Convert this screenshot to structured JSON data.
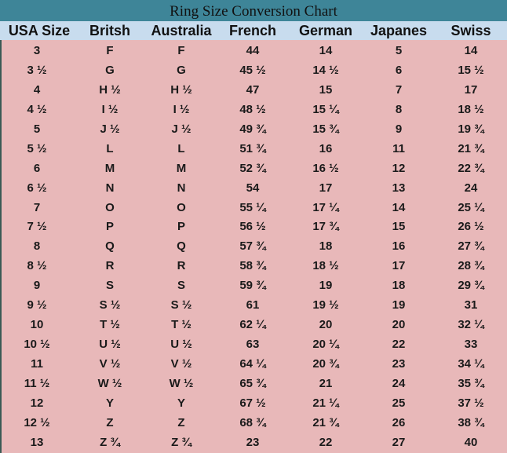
{
  "title": "Ring Size Conversion Chart",
  "colors": {
    "title_bar": "#3e8598",
    "header_bg": "#c8dcee",
    "body_bg": "#e8b8b9"
  },
  "columns": [
    "USA Size",
    "Britsh",
    "Australia",
    "French",
    "German",
    "Japanes",
    "Swiss"
  ],
  "rows": [
    [
      "3",
      "F",
      "F",
      "44",
      "14",
      "5",
      "14"
    ],
    [
      "3 ½",
      "G",
      "G",
      "45 ½",
      "14 ½",
      "6",
      "15 ½"
    ],
    [
      "4",
      "H ½",
      "H ½",
      "47",
      "15",
      "7",
      "17"
    ],
    [
      "4 ½",
      "I ½",
      "I ½",
      "48 ½",
      "15 ¼",
      "8",
      "18 ½"
    ],
    [
      "5",
      "J ½",
      "J ½",
      "49 ¾",
      "15 ¾",
      "9",
      "19 ¾"
    ],
    [
      "5 ½",
      "L",
      "L",
      "51 ¾",
      "16",
      "11",
      "21 ¾"
    ],
    [
      "6",
      "M",
      "M",
      "52 ¾",
      "16 ½",
      "12",
      "22 ¾"
    ],
    [
      "6 ½",
      "N",
      "N",
      "54",
      "17",
      "13",
      "24"
    ],
    [
      "7",
      "O",
      "O",
      "55 ¼",
      "17 ¼",
      "14",
      "25 ¼"
    ],
    [
      "7 ½",
      "P",
      "P",
      "56 ½",
      "17 ¾",
      "15",
      "26 ½"
    ],
    [
      "8",
      "Q",
      "Q",
      "57 ¾",
      "18",
      "16",
      "27  ¾"
    ],
    [
      "8 ½",
      "R",
      "R",
      "58 ¾",
      "18 ½",
      "17",
      "28  ¾"
    ],
    [
      "9",
      "S",
      "S",
      "59 ¾",
      "19",
      "18",
      "29  ¾"
    ],
    [
      "9 ½",
      "S ½",
      "S ½",
      "61",
      "19 ½",
      "19",
      "31"
    ],
    [
      "10",
      "T ½",
      "T ½",
      "62 ¼",
      "20",
      "20",
      "32 ¼"
    ],
    [
      "10 ½",
      "U ½",
      "U ½",
      "63",
      "20 ¼",
      "22",
      "33"
    ],
    [
      "11",
      "V ½",
      "V ½",
      "64 ¼",
      "20 ¾",
      "23",
      "34 ¼"
    ],
    [
      "11 ½",
      "W ½",
      "W ½",
      "65 ¾",
      "21",
      "24",
      "35 ¾"
    ],
    [
      "12",
      "Y",
      "Y",
      "67 ½",
      "21 ¼",
      "25",
      "37 ½"
    ],
    [
      "12 ½",
      "Z",
      "Z",
      "68 ¾",
      "21 ¾",
      "26",
      "38 ¾"
    ],
    [
      "13",
      "Z ¾",
      "Z ¾",
      "23",
      "22",
      "27",
      "40"
    ]
  ]
}
